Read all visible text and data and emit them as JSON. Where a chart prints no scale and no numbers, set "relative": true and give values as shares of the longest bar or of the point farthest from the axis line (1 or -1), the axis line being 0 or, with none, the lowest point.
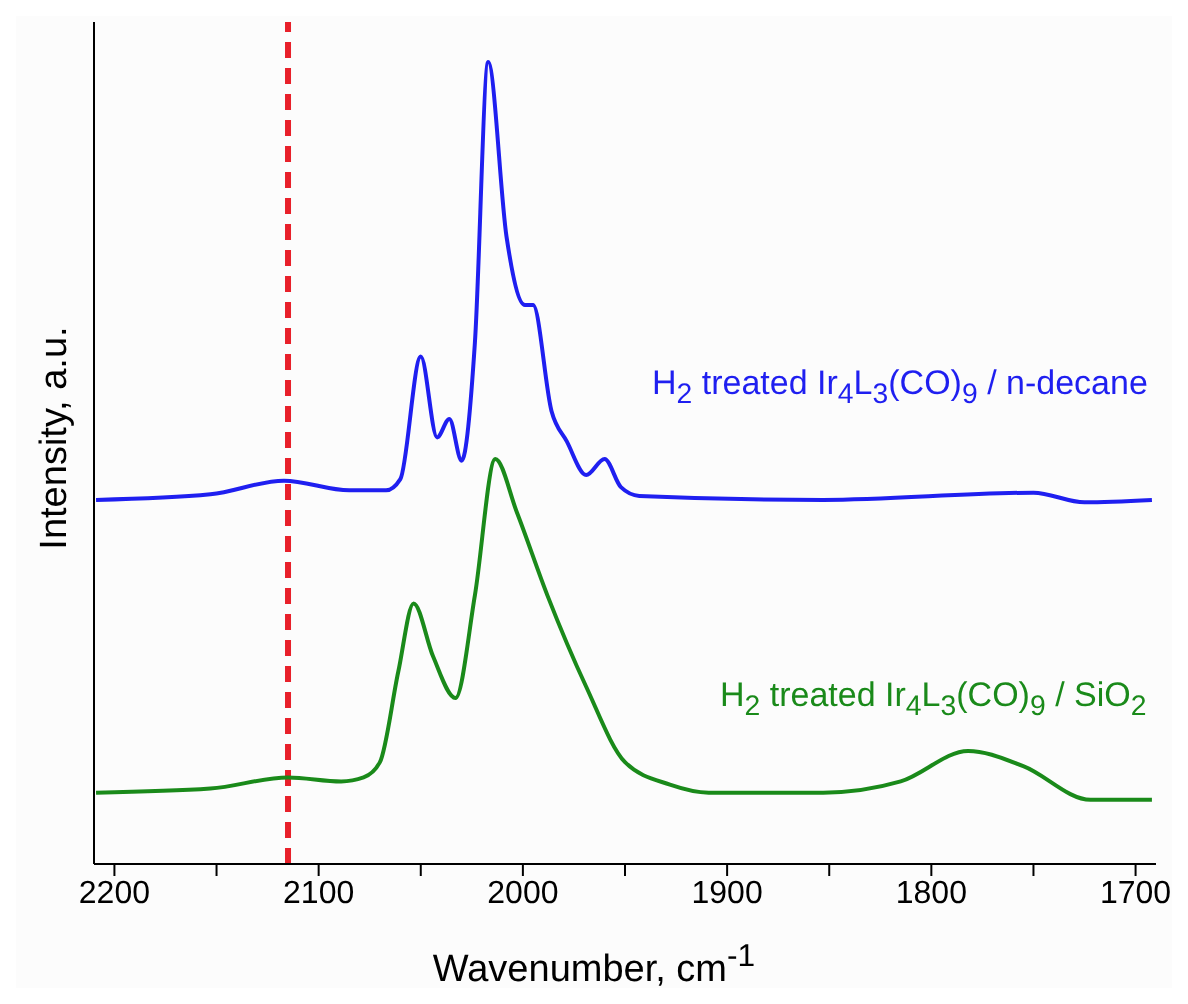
{
  "chart_data": {
    "type": "line",
    "relative": true,
    "xlabel": "Wavenumber, cm$^{-1}$",
    "ylabel": "Intensity, a.u.",
    "xlim": [
      2210,
      1690
    ],
    "xticks": [
      2200,
      {
        "value": 2150,
        "label": null
      },
      2100,
      {
        "value": 2050,
        "label": null
      },
      2000,
      {
        "value": 1950,
        "label": null
      },
      1900,
      {
        "value": 1850,
        "label": null
      },
      1800,
      {
        "value": 1750,
        "label": null
      },
      1700
    ],
    "legend": false,
    "marker": "none",
    "line_style": "solid",
    "ref_lines": [
      {
        "axis": "x",
        "value": 2115,
        "color": "#e8202a",
        "line_style": "dashed"
      }
    ],
    "series": [
      {
        "name": "H$_{2}$ treated Ir$_{4}$L$_{3}$(CO)$_{9}$ / n-decane",
        "color": "#1f1ff0",
        "x": [
          2209,
          2153,
          2117,
          2085,
          2067,
          2060,
          2050,
          2042,
          2036,
          2030,
          2023.5,
          2017,
          2008,
          1999,
          1995,
          1986,
          1978.5,
          1969,
          1960,
          1952,
          1943,
          1853,
          1750,
          1725,
          1692
        ],
        "values": [
          0.454,
          0.461,
          0.478,
          0.466,
          0.466,
          0.48,
          0.633,
          0.532,
          0.555,
          0.503,
          0.65,
          1.0,
          0.782,
          0.697,
          0.697,
          0.565,
          0.527,
          0.485,
          0.505,
          0.47,
          0.459,
          0.454,
          0.463,
          0.451,
          0.454
        ]
      },
      {
        "name": "H$_{2}$ treated Ir$_{4}$L$_{3}$(CO)$_{9}$ / SiO$_{2}$",
        "color": "#1a8a1a",
        "x": [
          2209,
          2153,
          2115,
          2089,
          2078,
          2070,
          2061,
          2053.5,
          2044,
          2033,
          2023.5,
          2013.5,
          2003,
          1988,
          1969,
          1950,
          1928,
          1909,
          1853,
          1815,
          1782,
          1755,
          1722,
          1692
        ],
        "values": [
          0.089,
          0.094,
          0.108,
          0.103,
          0.108,
          0.127,
          0.24,
          0.325,
          0.259,
          0.207,
          0.335,
          0.505,
          0.439,
          0.335,
          0.221,
          0.127,
          0.099,
          0.089,
          0.089,
          0.103,
          0.141,
          0.122,
          0.08,
          0.08
        ]
      }
    ]
  }
}
